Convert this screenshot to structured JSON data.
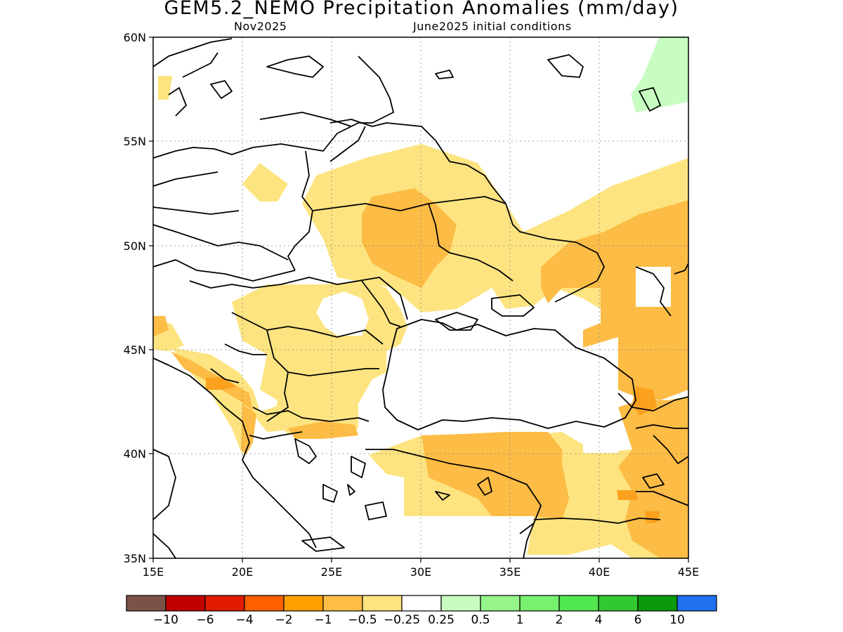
{
  "title": "GEM5.2_NEMO Precipitation Anomalies (mm/day)",
  "subtitle_left": "Nov2025",
  "subtitle_right": "June2025 initial conditions",
  "map": {
    "lon_range": [
      15,
      45
    ],
    "lat_range": [
      35,
      60
    ],
    "x_ticks": [
      {
        "value": 15,
        "label": "15E"
      },
      {
        "value": 20,
        "label": "20E"
      },
      {
        "value": 25,
        "label": "25E"
      },
      {
        "value": 30,
        "label": "30E"
      },
      {
        "value": 35,
        "label": "35E"
      },
      {
        "value": 40,
        "label": "40E"
      },
      {
        "value": 45,
        "label": "45E"
      }
    ],
    "y_ticks": [
      {
        "value": 60,
        "label": "60N"
      },
      {
        "value": 55,
        "label": "55N"
      },
      {
        "value": 50,
        "label": "50N"
      },
      {
        "value": 45,
        "label": "45N"
      },
      {
        "value": 40,
        "label": "40N"
      },
      {
        "value": 35,
        "label": "35N"
      }
    ],
    "gridlines": "dotted"
  },
  "colorbar": {
    "colors": [
      "#7b5346",
      "#c00000",
      "#e01b00",
      "#ff6000",
      "#ffa000",
      "#ffbd45",
      "#ffe380",
      "#ffffff",
      "#c8fcc0",
      "#96f58a",
      "#78f070",
      "#50e650",
      "#32c832",
      "#0c9a0c",
      "#2070f0"
    ],
    "labels": [
      "-10",
      "-6",
      "-4",
      "-2",
      "-1",
      "-0.5",
      "-0.25",
      "0.25",
      "0.5",
      "1",
      "2",
      "4",
      "6",
      "10"
    ]
  },
  "anomaly_colors": {
    "light_orange": "#fde480",
    "orange": "#fcbc45",
    "dark_orange": "#fba11d",
    "light_green": "#c7fdc1"
  }
}
